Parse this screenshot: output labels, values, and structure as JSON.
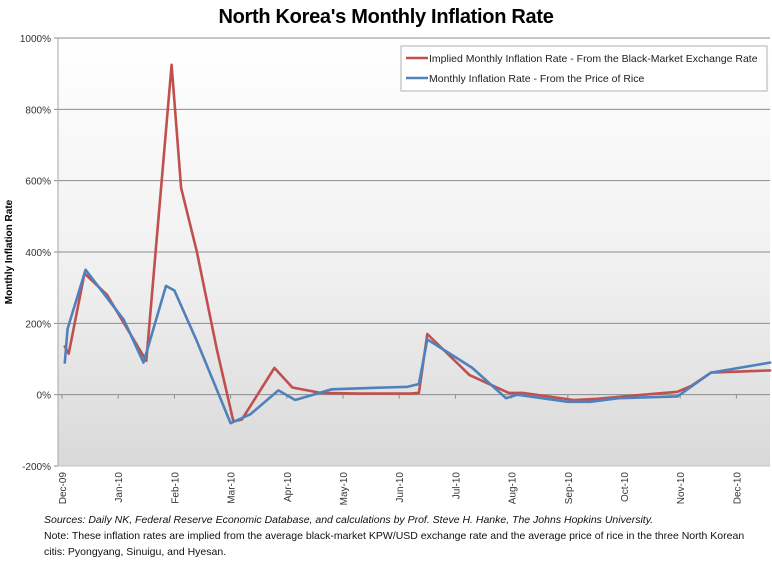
{
  "chart_data": {
    "type": "line",
    "title": "North Korea's Monthly Inflation Rate",
    "xlabel": "",
    "ylabel": "Monthly Inflation Rate",
    "x_unit": "months since Dec-09",
    "x_tick_labels": [
      "Dec-09",
      "Jan-10",
      "Feb-10",
      "Mar-10",
      "Apr-10",
      "May-10",
      "Jun-10",
      "Jul-10",
      "Aug-10",
      "Sep-10",
      "Oct-10",
      "Nov-10",
      "Dec-10"
    ],
    "xlim": [
      0,
      12.6
    ],
    "ylim": [
      -200,
      1000
    ],
    "y_ticks": [
      -200,
      0,
      200,
      400,
      600,
      800,
      1000
    ],
    "y_tick_labels": [
      "-200%",
      "0%",
      "200%",
      "400%",
      "600%",
      "800%",
      "1000%"
    ],
    "grid": "horizontal",
    "legend_position": "top-right",
    "series": [
      {
        "name": "Implied Monthly Inflation Rate - From the Black-Market Exchange Rate",
        "color": "#c0504d",
        "points": [
          [
            0.05,
            135
          ],
          [
            0.12,
            115
          ],
          [
            0.4,
            340
          ],
          [
            0.8,
            280
          ],
          [
            1.5,
            95
          ],
          [
            1.95,
            925
          ],
          [
            2.12,
            580
          ],
          [
            2.4,
            400
          ],
          [
            2.75,
            130
          ],
          [
            3.05,
            -75
          ],
          [
            3.2,
            -70
          ],
          [
            3.78,
            75
          ],
          [
            4.1,
            20
          ],
          [
            4.6,
            5
          ],
          [
            5.3,
            3
          ],
          [
            6.2,
            3
          ],
          [
            6.35,
            5
          ],
          [
            6.5,
            170
          ],
          [
            7.25,
            55
          ],
          [
            7.95,
            5
          ],
          [
            8.2,
            5
          ],
          [
            9.1,
            -15
          ],
          [
            9.5,
            -12
          ],
          [
            10.0,
            -5
          ],
          [
            10.95,
            8
          ],
          [
            11.2,
            25
          ],
          [
            11.55,
            62
          ],
          [
            12.6,
            68
          ]
        ]
      },
      {
        "name": "Monthly Inflation Rate - From the Price of Rice",
        "color": "#4f81bd",
        "points": [
          [
            0.05,
            90
          ],
          [
            0.1,
            185
          ],
          [
            0.42,
            350
          ],
          [
            1.1,
            210
          ],
          [
            1.45,
            90
          ],
          [
            1.85,
            305
          ],
          [
            2.0,
            292
          ],
          [
            2.4,
            150
          ],
          [
            3.0,
            -80
          ],
          [
            3.35,
            -55
          ],
          [
            3.85,
            12
          ],
          [
            4.15,
            -15
          ],
          [
            4.8,
            15
          ],
          [
            5.75,
            20
          ],
          [
            6.15,
            22
          ],
          [
            6.35,
            30
          ],
          [
            6.5,
            155
          ],
          [
            7.3,
            75
          ],
          [
            7.9,
            -10
          ],
          [
            8.1,
            0
          ],
          [
            9.0,
            -20
          ],
          [
            9.4,
            -20
          ],
          [
            9.9,
            -10
          ],
          [
            10.95,
            -5
          ],
          [
            11.55,
            62
          ],
          [
            12.6,
            90
          ]
        ]
      }
    ]
  },
  "footnote": {
    "sources": "Sources: Daily NK, Federal Reserve Economic Database, and calculations by Prof. Steve H. Hanke, The Johns Hopkins University.",
    "note": "Note: These inflation rates are implied from the average black-market KPW/USD exchange rate and the average price of rice in the three North Korean citis: Pyongyang, Sinuigu, and Hyesan."
  }
}
